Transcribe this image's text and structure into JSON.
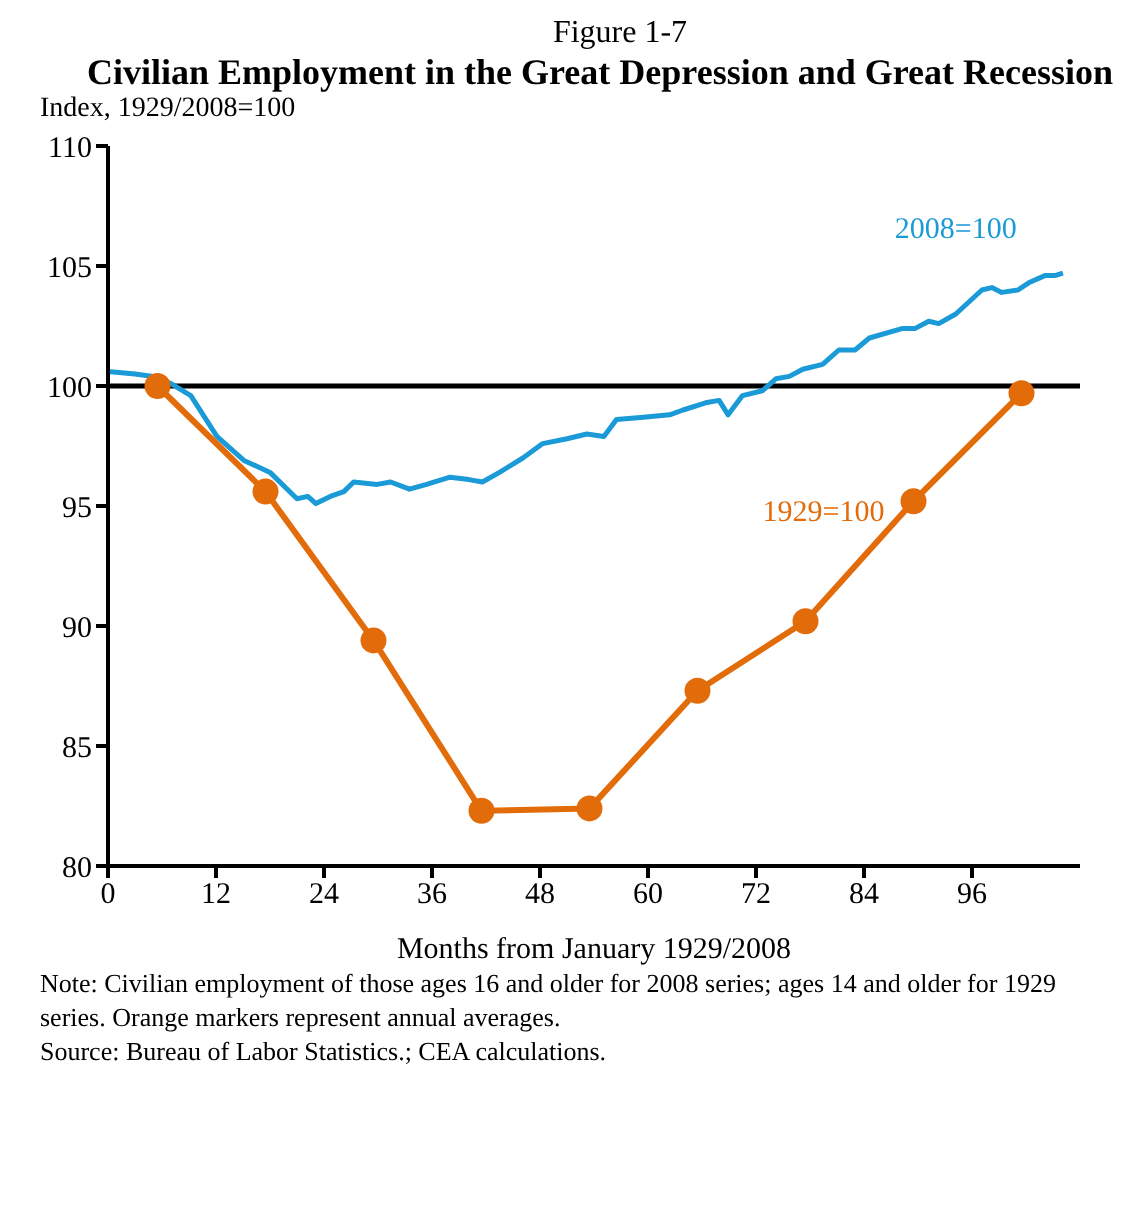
{
  "chart_data": {
    "type": "line",
    "subtitle": "Figure 1-7",
    "title": "Civilian Employment in the Great Depression and Great Recession",
    "ylabel": "Index, 1929/2008=100",
    "xlabel": "Months from January 1929/2008",
    "annotations": [
      "Note: Civilian employment of those ages 16 and older for 2008 series; ages 14 and older for 1929 series. Orange markers represent annual averages.",
      "Source: Bureau of Labor Statistics.; CEA calculations."
    ],
    "xlim": [
      0,
      108
    ],
    "xticks": [
      0,
      12,
      24,
      36,
      48,
      60,
      72,
      84,
      96
    ],
    "ylim": [
      80,
      110
    ],
    "yticks": [
      80,
      85,
      90,
      95,
      100,
      105,
      110
    ],
    "ref_lines": [
      {
        "axis": "y",
        "value": 100,
        "color": "#000000"
      }
    ],
    "series": [
      {
        "name": "2008=100",
        "color": "#1a9ad6",
        "marker": "none",
        "x": [
          0,
          3,
          5,
          7,
          9.2,
          12.1,
          15.1,
          18,
          21,
          22.2,
          23.1,
          24.7,
          26.2,
          27.3,
          29.9,
          31.4,
          33.5,
          35.4,
          38,
          40.1,
          41.6,
          43.5,
          46.1,
          48.3,
          51,
          53.2,
          55.1,
          56.5,
          59.5,
          62.4,
          63.9,
          66.4,
          67.9,
          68.9,
          70.5,
          72.7,
          74.2,
          75.7,
          77.2,
          79.4,
          81.2,
          83,
          84.6,
          88.3,
          89.7,
          91.2,
          92.3,
          94.2,
          97.1,
          98.2,
          99.3,
          101.1,
          102.3,
          104.1,
          105.2,
          106.1
        ],
        "values": [
          100.6,
          100.5,
          100.4,
          100.1,
          99.6,
          97.9,
          96.9,
          96.4,
          95.3,
          95.4,
          95.1,
          95.4,
          95.6,
          96,
          95.9,
          96,
          95.7,
          95.9,
          96.2,
          96.1,
          96,
          96.4,
          97,
          97.6,
          97.8,
          98,
          97.9,
          98.6,
          98.7,
          98.8,
          99,
          99.3,
          99.4,
          98.8,
          99.6,
          99.8,
          100.3,
          100.4,
          100.7,
          100.9,
          101.5,
          101.5,
          102,
          102.4,
          102.4,
          102.7,
          102.6,
          103,
          104,
          104.1,
          103.9,
          104,
          104.3,
          104.6,
          104.6,
          104.7
        ]
      },
      {
        "name": "1929=100",
        "color": "#e36c0a",
        "marker": "circle",
        "x": [
          5.5,
          17.5,
          29.5,
          41.5,
          53.5,
          65.5,
          77.5,
          89.5,
          101.5
        ],
        "values": [
          100,
          95.6,
          89.4,
          82.3,
          82.4,
          87.3,
          90.2,
          95.2,
          99.7
        ]
      }
    ]
  }
}
